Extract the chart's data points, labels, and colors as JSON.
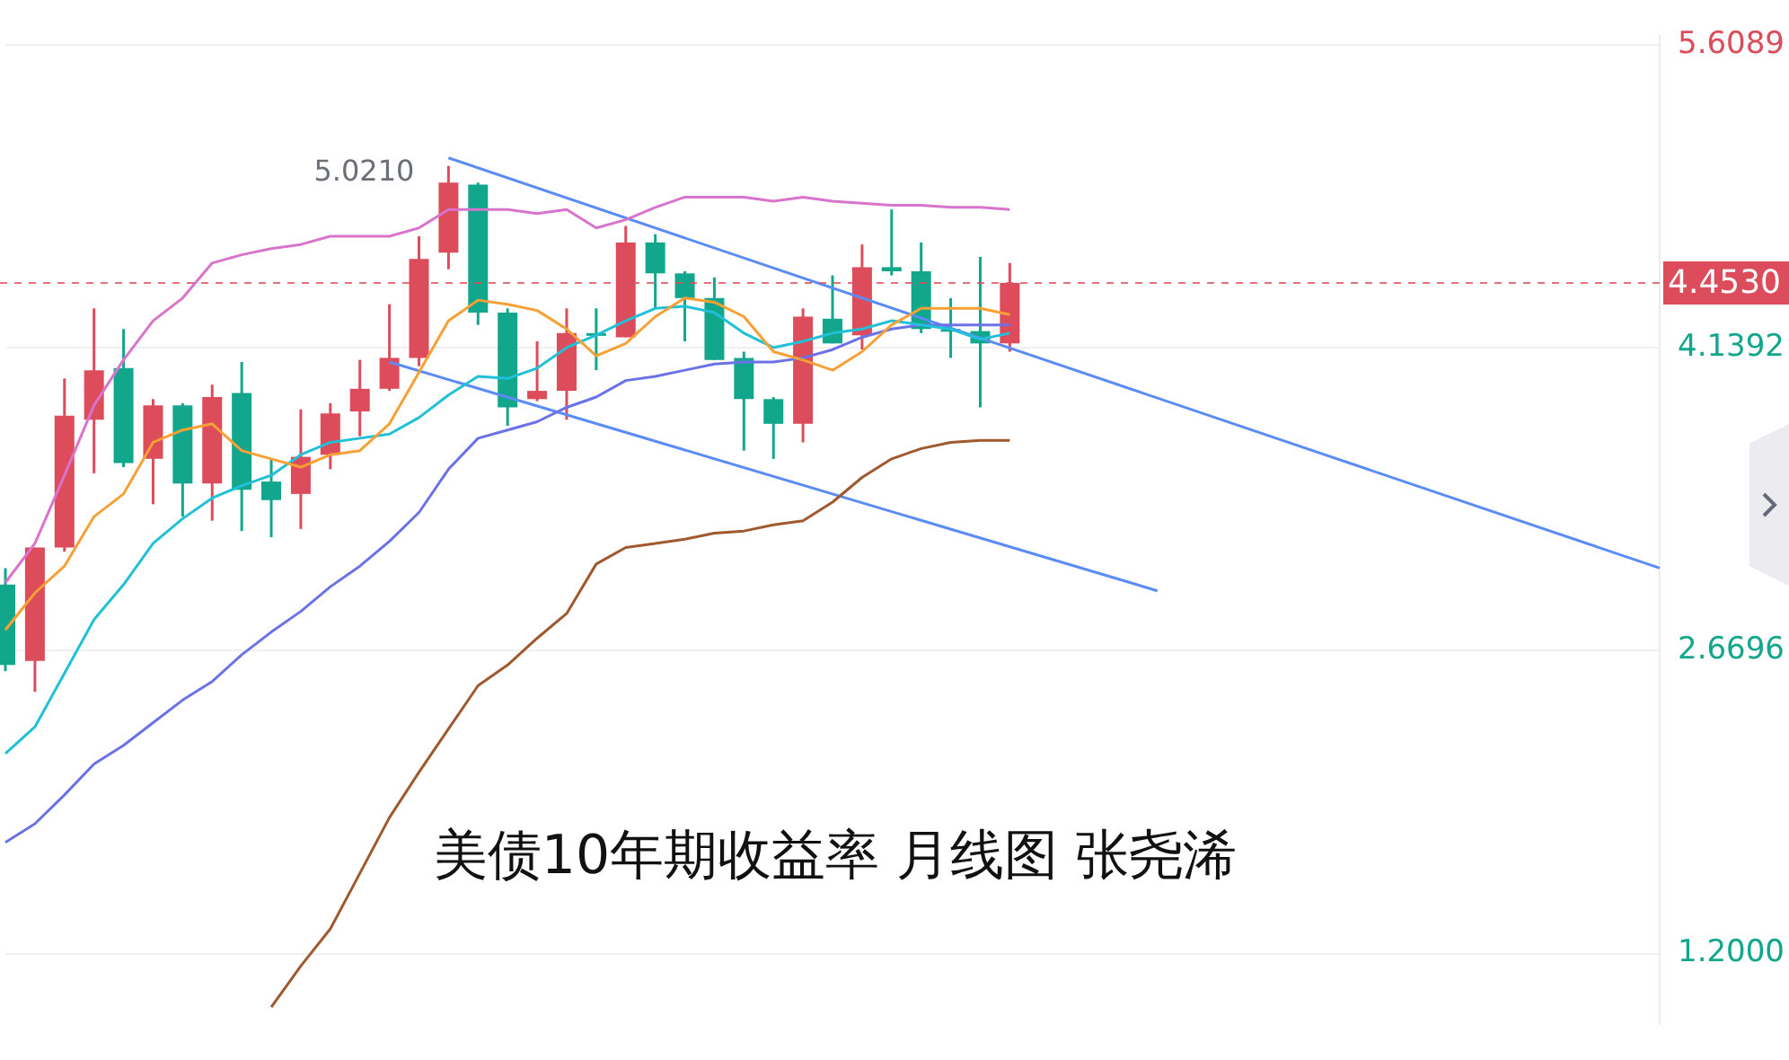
{
  "chart_data": {
    "type": "candlestick",
    "categories": [
      null,
      null,
      null,
      null,
      null,
      null,
      null,
      null,
      null,
      null,
      null,
      null,
      null,
      null,
      null,
      null,
      null,
      null,
      null,
      null,
      null,
      null,
      null,
      null,
      null,
      null,
      null,
      null,
      null,
      null,
      null,
      null,
      null,
      null,
      null,
      null,
      null,
      null,
      null,
      null,
      null,
      null,
      null,
      null,
      null,
      null,
      null,
      null,
      null,
      null,
      null,
      null,
      null,
      null,
      null,
      null,
      null
    ],
    "ohlc": [
      [
        2.99,
        3.07,
        2.57,
        2.6
      ],
      [
        2.62,
        3.17,
        2.47,
        3.17
      ],
      [
        3.17,
        3.99,
        3.15,
        3.81
      ],
      [
        3.79,
        4.33,
        3.53,
        4.03
      ],
      [
        4.04,
        4.23,
        3.56,
        3.58
      ],
      [
        3.6,
        3.89,
        3.38,
        3.86
      ],
      [
        3.86,
        3.87,
        3.32,
        3.48
      ],
      [
        3.48,
        3.96,
        3.3,
        3.9
      ],
      [
        3.92,
        4.07,
        3.25,
        3.45
      ],
      [
        3.49,
        3.6,
        3.22,
        3.4
      ],
      [
        3.43,
        3.84,
        3.26,
        3.61
      ],
      [
        3.62,
        3.87,
        3.55,
        3.82
      ],
      [
        3.83,
        4.08,
        3.71,
        3.94
      ],
      [
        3.94,
        4.35,
        3.93,
        4.09
      ],
      [
        4.09,
        4.68,
        4.05,
        4.57
      ],
      [
        4.6,
        5.021,
        4.52,
        4.94
      ],
      [
        4.93,
        4.94,
        4.25,
        4.31
      ],
      [
        4.31,
        4.33,
        3.76,
        3.85
      ],
      [
        3.89,
        4.17,
        3.88,
        3.93
      ],
      [
        3.93,
        4.33,
        3.79,
        4.21
      ],
      [
        4.21,
        4.33,
        4.03,
        4.2
      ],
      [
        4.19,
        4.73,
        4.19,
        4.65
      ],
      [
        4.65,
        4.69,
        4.33,
        4.5
      ],
      [
        4.5,
        4.51,
        4.17,
        4.38
      ],
      [
        4.38,
        4.48,
        4.08,
        4.08
      ],
      [
        4.09,
        4.12,
        3.64,
        3.89
      ],
      [
        3.89,
        3.9,
        3.6,
        3.77
      ],
      [
        3.77,
        4.33,
        3.68,
        4.29
      ],
      [
        4.28,
        4.49,
        4.16,
        4.16
      ],
      [
        4.2,
        4.64,
        4.13,
        4.53
      ],
      [
        4.53,
        4.81,
        4.49,
        4.51
      ],
      [
        4.51,
        4.65,
        4.21,
        4.23
      ],
      [
        4.23,
        4.38,
        4.09,
        4.22
      ],
      [
        4.22,
        4.58,
        3.85,
        4.16
      ],
      [
        4.16,
        4.55,
        4.12,
        4.453
      ],
      null,
      null,
      null,
      null,
      null,
      null,
      null,
      null,
      null,
      null,
      null,
      null,
      null,
      null,
      null,
      null,
      null,
      null,
      null,
      null,
      null,
      null
    ],
    "colors": [
      "#12a78c",
      "#dc4c5a",
      "#dc4c5a",
      "#dc4c5a",
      "#12a78c",
      "#dc4c5a",
      "#12a78c",
      "#dc4c5a",
      "#12a78c",
      "#12a78c",
      "#dc4c5a",
      "#dc4c5a",
      "#dc4c5a",
      "#dc4c5a",
      "#dc4c5a",
      "#dc4c5a",
      "#12a78c",
      "#12a78c",
      "#dc4c5a",
      "#dc4c5a",
      "#12a78c",
      "#dc4c5a",
      "#12a78c",
      "#12a78c",
      "#12a78c",
      "#12a78c",
      "#12a78c",
      "#dc4c5a",
      "#12a78c",
      "#dc4c5a",
      "#12a78c",
      "#12a78c",
      "#12a78c",
      "#12a78c",
      "#dc4c5a",
      null,
      null,
      null,
      null,
      null,
      null,
      null,
      null,
      null,
      null,
      null,
      null,
      null,
      null,
      null,
      null,
      null,
      null,
      null,
      null,
      null,
      null
    ],
    "series": [
      {
        "type": "line",
        "color": "#d874cc",
        "values": [
          3.0,
          3.19,
          3.52,
          3.86,
          4.08,
          4.27,
          4.38,
          4.55,
          4.59,
          4.62,
          4.64,
          4.68,
          4.68,
          4.68,
          4.72,
          4.81,
          4.81,
          4.81,
          4.79,
          4.81,
          4.72,
          4.76,
          4.82,
          4.87,
          4.87,
          4.87,
          4.85,
          4.87,
          4.85,
          4.84,
          4.83,
          4.83,
          4.82,
          4.82,
          4.81,
          null,
          null,
          null,
          null,
          null,
          null,
          null,
          null,
          null,
          null,
          null,
          null,
          null,
          null,
          null,
          null,
          null,
          null,
          null,
          null,
          null,
          null
        ]
      },
      {
        "type": "line",
        "color": "#f7a035",
        "values": [
          2.77,
          2.95,
          3.08,
          3.32,
          3.43,
          3.68,
          3.74,
          3.77,
          3.64,
          3.6,
          3.56,
          3.62,
          3.64,
          3.77,
          4.02,
          4.27,
          4.37,
          4.35,
          4.32,
          4.23,
          4.1,
          4.16,
          4.29,
          4.38,
          4.36,
          4.29,
          4.12,
          4.08,
          4.03,
          4.12,
          4.25,
          4.33,
          4.33,
          4.33,
          4.3,
          null,
          null,
          null,
          null,
          null,
          null,
          null,
          null,
          null,
          null,
          null,
          null,
          null,
          null,
          null,
          null,
          null,
          null,
          null,
          null,
          null,
          null
        ]
      },
      {
        "type": "line",
        "color": "#22c0d8",
        "values": [
          2.17,
          2.3,
          2.56,
          2.82,
          2.99,
          3.19,
          3.31,
          3.41,
          3.47,
          3.52,
          3.62,
          3.68,
          3.7,
          3.72,
          3.8,
          3.91,
          4.0,
          3.99,
          4.04,
          4.14,
          4.2,
          4.27,
          4.33,
          4.34,
          4.31,
          4.21,
          4.14,
          4.17,
          4.21,
          4.23,
          4.27,
          4.25,
          4.23,
          4.18,
          4.21,
          null,
          null,
          null,
          null,
          null,
          null,
          null,
          null,
          null,
          null,
          null,
          null,
          null,
          null,
          null,
          null,
          null,
          null,
          null,
          null,
          null,
          null
        ]
      },
      {
        "type": "line",
        "color": "#6b72e8",
        "values": [
          1.74,
          1.83,
          1.97,
          2.12,
          2.21,
          2.32,
          2.43,
          2.52,
          2.65,
          2.76,
          2.86,
          2.98,
          3.08,
          3.2,
          3.34,
          3.55,
          3.7,
          3.74,
          3.78,
          3.85,
          3.9,
          3.98,
          4.0,
          4.03,
          4.06,
          4.07,
          4.07,
          4.09,
          4.13,
          4.19,
          4.23,
          4.25,
          4.25,
          4.25,
          4.25,
          null,
          null,
          null,
          null,
          null,
          null,
          null,
          null,
          null,
          null,
          null,
          null,
          null,
          null,
          null,
          null,
          null,
          null,
          null,
          null,
          null,
          null
        ]
      },
      {
        "type": "line",
        "color": "#a0582e",
        "values": [
          null,
          null,
          null,
          null,
          null,
          null,
          null,
          null,
          null,
          0.94,
          1.14,
          1.32,
          1.59,
          1.86,
          2.08,
          2.29,
          2.5,
          2.6,
          2.73,
          2.85,
          3.09,
          3.17,
          3.19,
          3.21,
          3.24,
          3.25,
          3.28,
          3.3,
          3.39,
          3.51,
          3.6,
          3.65,
          3.68,
          3.69,
          3.69,
          null,
          null,
          null,
          null,
          null,
          null,
          null,
          null,
          null,
          null,
          null,
          null,
          null,
          null,
          null,
          null,
          null,
          null,
          null,
          null,
          null,
          null
        ]
      },
      {
        "type": "line",
        "color": "#5b8cf6",
        "values": [
          null,
          null,
          null,
          null,
          null,
          null,
          null,
          null,
          null,
          null,
          null,
          null,
          null,
          null,
          null,
          5.06,
          null,
          null,
          null,
          null,
          null,
          null,
          null,
          null,
          null,
          null,
          null,
          null,
          null,
          null,
          null,
          null,
          null,
          null,
          null,
          null,
          null,
          null,
          null,
          null,
          null,
          null,
          null,
          null,
          null,
          null,
          null,
          null,
          null,
          null,
          null,
          null,
          null,
          null,
          null,
          null,
          3.07
        ]
      },
      {
        "type": "line",
        "color": "#5b8cf6",
        "values": [
          null,
          null,
          null,
          null,
          null,
          null,
          null,
          null,
          null,
          null,
          null,
          null,
          null,
          4.07,
          null,
          null,
          null,
          null,
          null,
          null,
          null,
          null,
          null,
          null,
          null,
          null,
          null,
          null,
          null,
          null,
          null,
          null,
          null,
          null,
          null,
          null,
          null,
          null,
          null,
          2.96,
          null,
          null,
          null,
          null,
          null,
          null,
          null,
          null,
          null,
          null,
          null,
          null,
          null,
          null,
          null,
          null,
          null
        ]
      }
    ],
    "ylim": [
      0.86,
      5.65
    ],
    "yticks": [
      5.6089,
      4.1392,
      2.6696,
      {
        "value": 1.2,
        "label": "1.2000"
      }
    ],
    "ref_lines": [
      {
        "axis": "y",
        "value": 4.453,
        "label": "4.4530",
        "color": "#dc4c5a",
        "line_style": "dashed"
      }
    ],
    "annotations": [
      "5.0210",
      "美债10年期收益率 月线图 张尧浠"
    ],
    "grid": "y",
    "tick_labels": "y"
  }
}
